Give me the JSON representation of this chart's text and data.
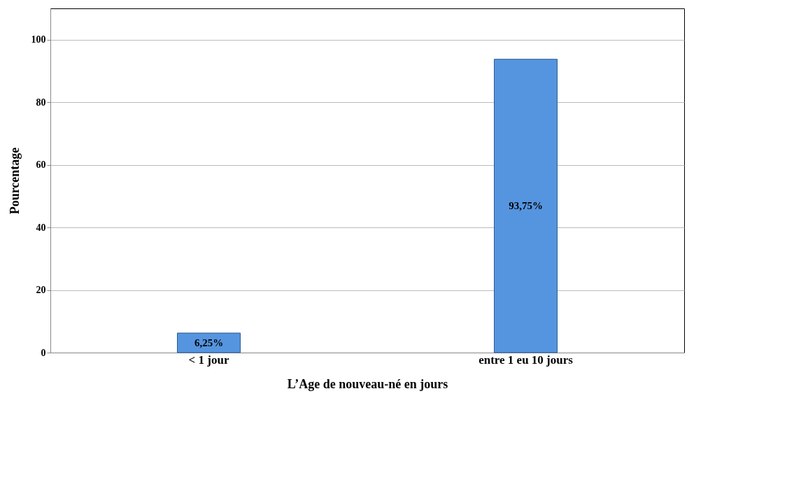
{
  "chart_data": {
    "type": "bar",
    "xlabel": "L’Age de nouveau-né en jours",
    "ylabel": "Pourcentage",
    "categories": [
      "< 1 jour",
      "entre 1 eu 10 jours"
    ],
    "values": [
      6.25,
      93.75
    ],
    "value_labels": [
      "6,25%",
      "93,75%"
    ],
    "color": "#5595e0",
    "ylim": [
      0,
      110
    ],
    "yticks": [
      0,
      20,
      40,
      60,
      80,
      100
    ],
    "grid": "y"
  }
}
